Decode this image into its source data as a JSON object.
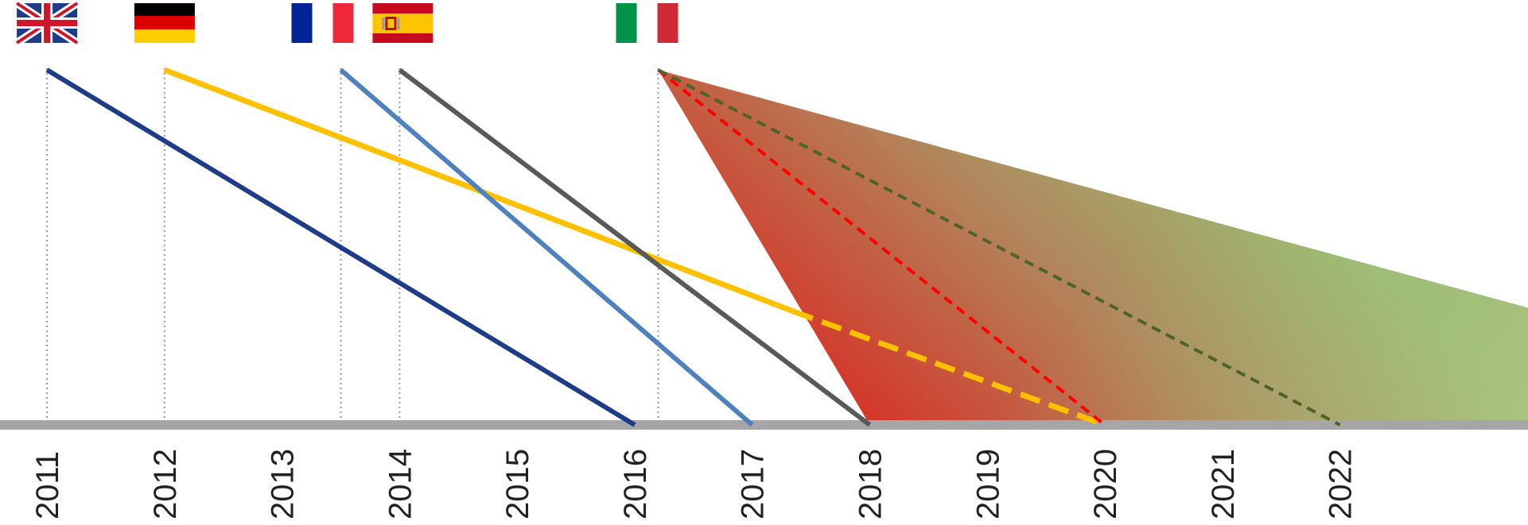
{
  "chart_data": {
    "type": "line",
    "x_axis": {
      "tick_labels": [
        "2011",
        "2012",
        "2013",
        "2014",
        "2015",
        "2016",
        "2017",
        "2018",
        "2019",
        "2020",
        "2021",
        "2022"
      ],
      "range": [
        2010.6,
        2023.6
      ]
    },
    "y_axis": {
      "range": [
        0,
        1
      ]
    },
    "grid": false,
    "colors": {
      "uk": "#1f3c88",
      "germany": "#ffc000",
      "france": "#4f81bd",
      "spain": "#595959",
      "italy_red": "#ff0000",
      "italy_green": "#4f6228",
      "baseline": "#a6a6a6",
      "guide": "#999999",
      "area_red": "#d33a2c",
      "area_green": "#9bbb72"
    },
    "flags": [
      {
        "icon": "uk-flag-icon",
        "x": 2011.0
      },
      {
        "icon": "germany-flag-icon",
        "x": 2012.0
      },
      {
        "icon": "france-flag-icon",
        "x": 2013.5
      },
      {
        "icon": "spain-flag-icon",
        "x": 2014.0
      },
      {
        "icon": "italy-flag-icon",
        "x": 2016.2
      }
    ],
    "guides": [
      2011.0,
      2012.0,
      2013.5,
      2014.0,
      2016.2
    ],
    "series": [
      {
        "icon": "uk",
        "color": "#1f3c88",
        "style": "solid",
        "points": [
          [
            2011.0,
            1.0
          ],
          [
            2016.0,
            0.0
          ]
        ]
      },
      {
        "icon": "germany",
        "color": "#ffc000",
        "style": "solid",
        "points": [
          [
            2012.0,
            1.0
          ],
          [
            2017.35,
            0.32
          ]
        ]
      },
      {
        "icon": "germany",
        "color": "#ffc000",
        "style": "dashed",
        "points": [
          [
            2017.35,
            0.32
          ],
          [
            2020.0,
            0.0
          ]
        ]
      },
      {
        "icon": "france",
        "color": "#4f81bd",
        "style": "solid",
        "points": [
          [
            2013.5,
            1.0
          ],
          [
            2017.0,
            0.0
          ]
        ]
      },
      {
        "icon": "spain",
        "color": "#595959",
        "style": "solid",
        "points": [
          [
            2014.0,
            1.0
          ],
          [
            2018.0,
            0.0
          ]
        ]
      },
      {
        "icon": "italy",
        "color": "#ff0000",
        "style": "dashed",
        "points": [
          [
            2016.2,
            1.0
          ],
          [
            2020.0,
            0.0
          ]
        ]
      },
      {
        "icon": "italy",
        "color": "#4f6228",
        "style": "dashed",
        "points": [
          [
            2016.2,
            1.0
          ],
          [
            2022.0,
            0.0
          ]
        ]
      }
    ],
    "range_area": {
      "apex": [
        2016.2,
        1.0
      ],
      "start": [
        2018.0,
        0.0
      ],
      "end_bottom": [
        2023.6,
        0.0
      ],
      "end_top": [
        2023.6,
        0.33
      ]
    }
  }
}
